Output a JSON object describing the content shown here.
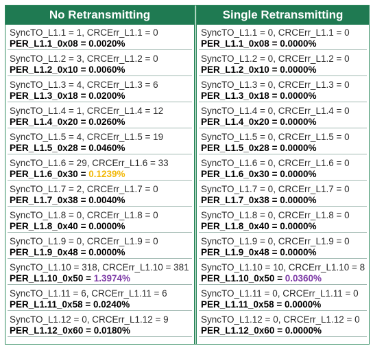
{
  "headers": {
    "left": "No Retransmitting",
    "right": "Single Retransmitting"
  },
  "left": [
    {
      "sync": "SyncTO_L1.1 = 1, CRCErr_L1.1 = 0",
      "per_label": "PER_L1.1_0x08 = ",
      "per_value": "0.0020%",
      "hl": ""
    },
    {
      "sync": "SyncTO_L1.2 = 3, CRCErr_L1.2 = 0",
      "per_label": "PER_L1.2_0x10 = ",
      "per_value": "0.0060%",
      "hl": ""
    },
    {
      "sync": "SyncTO_L1.3 = 4, CRCErr_L1.3 = 6",
      "per_label": "PER_L1.3_0x18 = ",
      "per_value": "0.0200%",
      "hl": ""
    },
    {
      "sync": "SyncTO_L1.4 = 1, CRCErr_L1.4 = 12",
      "per_label": "PER_L1.4_0x20 = ",
      "per_value": "0.0260%",
      "hl": ""
    },
    {
      "sync": "SyncTO_L1.5 = 4, CRCErr_L1.5 = 19",
      "per_label": "PER_L1.5_0x28 = ",
      "per_value": "0.0460%",
      "hl": ""
    },
    {
      "sync": "SyncTO_L1.6 = 29, CRCErr_L1.6 = 33",
      "per_label": "PER_L1.6_0x30 = ",
      "per_value": "0.1239%",
      "hl": "yellow"
    },
    {
      "sync": "SyncTO_L1.7 = 2, CRCErr_L1.7 = 0",
      "per_label": "PER_L1.7_0x38 = ",
      "per_value": "0.0040%",
      "hl": ""
    },
    {
      "sync": "SyncTO_L1.8 = 0, CRCErr_L1.8 = 0",
      "per_label": "PER_L1.8_0x40 = ",
      "per_value": "0.0000%",
      "hl": ""
    },
    {
      "sync": "SyncTO_L1.9 = 0, CRCErr_L1.9 = 0",
      "per_label": "PER_L1.9_0x48 = ",
      "per_value": "0.0000%",
      "hl": ""
    },
    {
      "sync": "SyncTO_L1.10 = 318, CRCErr_L1.10 = 381",
      "per_label": "PER_L1.10_0x50 = ",
      "per_value": "1.3974%",
      "hl": "purple"
    },
    {
      "sync": "SyncTO_L1.11 = 6, CRCErr_L1.11 = 6",
      "per_label": "PER_L1.11_0x58 = ",
      "per_value": "0.0240%",
      "hl": ""
    },
    {
      "sync": "SyncTO_L1.12 = 0, CRCErr_L1.12 = 9",
      "per_label": "PER_L1.12_0x60 = ",
      "per_value": "0.0180%",
      "hl": ""
    }
  ],
  "right": [
    {
      "sync": "SyncTO_L1.1 = 0, CRCErr_L1.1 = 0",
      "per_label": "PER_L1.1_0x08 = ",
      "per_value": "0.0000%",
      "hl": ""
    },
    {
      "sync": "SyncTO_L1.2 = 0, CRCErr_L1.2 = 0",
      "per_label": "PER_L1.2_0x10 = ",
      "per_value": "0.0000%",
      "hl": ""
    },
    {
      "sync": "SyncTO_L1.3 = 0, CRCErr_L1.3 = 0",
      "per_label": "PER_L1.3_0x18 = ",
      "per_value": "0.0000%",
      "hl": ""
    },
    {
      "sync": "SyncTO_L1.4 = 0, CRCErr_L1.4 = 0",
      "per_label": "PER_L1.4_0x20 = ",
      "per_value": "0.0000%",
      "hl": ""
    },
    {
      "sync": "SyncTO_L1.5 = 0, CRCErr_L1.5 = 0",
      "per_label": "PER_L1.5_0x28 = ",
      "per_value": "0.0000%",
      "hl": ""
    },
    {
      "sync": "SyncTO_L1.6 = 0, CRCErr_L1.6 = 0",
      "per_label": "PER_L1.6_0x30 = ",
      "per_value": "0.0000%",
      "hl": ""
    },
    {
      "sync": "SyncTO_L1.7 = 0, CRCErr_L1.7 = 0",
      "per_label": "PER_L1.7_0x38 = ",
      "per_value": "0.0000%",
      "hl": ""
    },
    {
      "sync": "SyncTO_L1.8 = 0, CRCErr_L1.8 = 0",
      "per_label": "PER_L1.8_0x40 = ",
      "per_value": "0.0000%",
      "hl": ""
    },
    {
      "sync": "SyncTO_L1.9 = 0, CRCErr_L1.9 = 0",
      "per_label": "PER_L1.9_0x48 = ",
      "per_value": "0.0000%",
      "hl": ""
    },
    {
      "sync": "SyncTO_L1.10 = 10, CRCErr_L1.10 = 8",
      "per_label": "PER_L1.10_0x50 = ",
      "per_value": "0.0360%",
      "hl": "purple"
    },
    {
      "sync": "SyncTO_L1.11 = 0, CRCErr_L1.11 = 0",
      "per_label": "PER_L1.11_0x58 = ",
      "per_value": "0.0000%",
      "hl": ""
    },
    {
      "sync": "SyncTO_L1.12 = 0, CRCErr_L1.12 = 0",
      "per_label": "PER_L1.12_0x60 = ",
      "per_value": "0.0000%",
      "hl": ""
    }
  ],
  "colors": {
    "header_bg": "#1f7a52",
    "header_text": "#ffffff",
    "highlight_yellow": "#f2b705",
    "highlight_purple": "#7c3aa6"
  }
}
